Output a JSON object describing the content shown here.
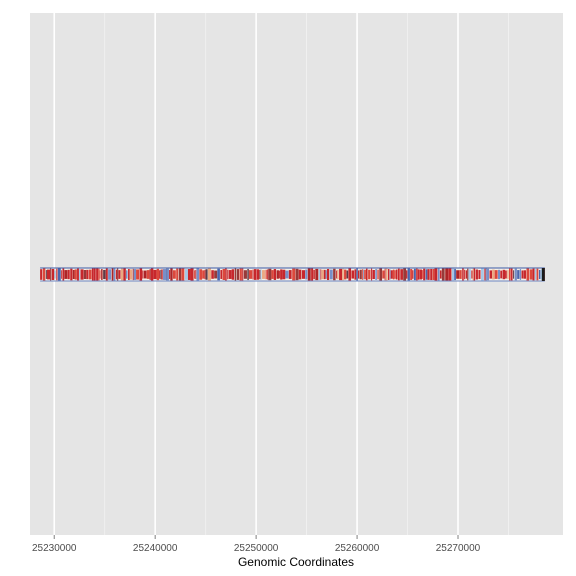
{
  "chart_data": {
    "type": "scatter",
    "title": "",
    "xlabel": "Genomic Coordinates",
    "ylabel": "",
    "xlim": [
      25227600,
      25280400
    ],
    "x_ticks": [
      25230000,
      25240000,
      25250000,
      25260000,
      25270000
    ],
    "x_tick_labels": [
      "25230000",
      "25240000",
      "25250000",
      "25260000",
      "25270000"
    ],
    "x_minor_ticks": [
      25235000,
      25245000,
      25255000,
      25265000,
      25275000
    ],
    "track_range": [
      25228600,
      25278600
    ],
    "grid": true,
    "y_ticks": [],
    "legend": "none",
    "palette": [
      "#c2161c",
      "#d9392e",
      "#a51417",
      "#8e2a2a",
      "#6d87c4",
      "#3b5aa8",
      "#9dc3e6",
      "#e8a27a",
      "#4f2b3a",
      "#d7d9ea"
    ],
    "background_color": "#e5e5e5",
    "grid_color": "#ffffff"
  }
}
